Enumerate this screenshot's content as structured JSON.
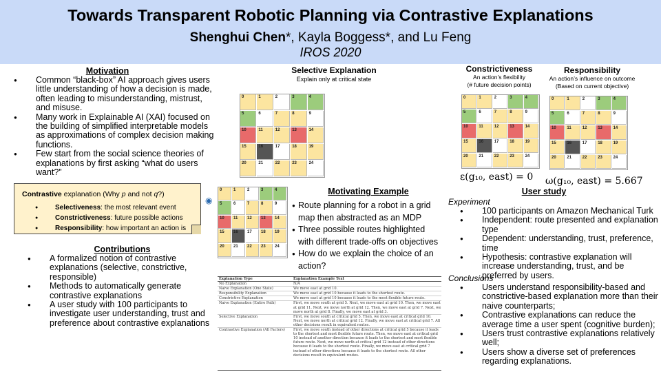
{
  "header": {
    "title": "Towards Transparent Robotic Planning via Contrastive Explanations",
    "authors_main": "Shenghui Chen",
    "authors_rest": "*, Kayla Boggess*, and Lu Feng",
    "venue": "IROS 2020"
  },
  "motivation": {
    "heading": "Motivation",
    "bullets": [
      "Common “black-box” AI approach gives users little understanding of how a decision is made, often leading to misunderstanding, mistrust, and misuse.",
      "Many work in Explainable AI (XAI) focused on the building of simplified interpretable models as approximations of complex decision making functions.",
      "Few start from the social science theories of explanations by first asking “what do users want?”"
    ]
  },
  "contrastive_box": {
    "title_bold": "Contrastive",
    "title_rest": " explanation (Why ",
    "p": "p",
    "and_not": " and not ",
    "q": "q",
    "end": "?)",
    "items": [
      {
        "term": "Selectiveness",
        "desc": ": the most relevant event"
      },
      {
        "term": "Constrictiveness",
        "desc": ": future possible actions"
      },
      {
        "term": "Responsibility",
        "desc": ": how important an action is"
      }
    ]
  },
  "contributions": {
    "heading": "Contributions",
    "bullets": [
      "A formalized notion of contrastive explanations (selective, constrictive, responsible)",
      "Methods to automatically generate contrastive explanations",
      "A user study with 100 participants to investigate user understanding, trust and preference about contrastive explanations"
    ]
  },
  "selective": {
    "heading": "Selective Explanation",
    "subtitle": "Explain only at critical state"
  },
  "constrictiveness": {
    "heading": "Constrictiveness",
    "subtitle1": "An action’s flexibility",
    "subtitle2": "(# future decision points)",
    "equation": "ε(g₁₀, east) = 0"
  },
  "responsibility": {
    "heading": "Responsibility",
    "subtitle1": "An action’s influence on outcome",
    "subtitle2": "(Based on current objective)",
    "equation": "ω(g₁₀, east) = 5.667"
  },
  "motivating_example": {
    "heading": "Motivating Example",
    "bullets": [
      "Route planning for a robot in a grid map then abstracted as an MDP",
      "Three possible routes highlighted with different trade-offs on objectives",
      "How do we explain the choice of an action?"
    ]
  },
  "user_study": {
    "heading": "User study",
    "experiment_label": "Experiment",
    "experiment": [
      "100 participants on Amazon Mechanical Turk",
      "Independent: route presented and explanation type",
      "Dependent: understanding, trust, preference, time",
      "Hypothesis: contrastive explanation will increase understanding, trust, and be preferred by users."
    ],
    "conclusions_label": "Conclusions",
    "conclusions": [
      "Users understand responsibility-based  and constrictive-based explanation more than their naive counterparts;",
      "Contrastive explanations can reduce the average time a user spent (cognitive burden);",
      "Users trust contrastive explanations relatively well;",
      "Users show a diverse set of preferences regarding explanations."
    ]
  },
  "explanation_table": {
    "headers": [
      "Explanation Type",
      "Explanation Example Text"
    ],
    "rows": [
      [
        "No Explanation",
        "N/A"
      ],
      [
        "Naive Explanation (One State)",
        "We move east at grid 10."
      ],
      [
        "Responsibility Explanation",
        "We move east at grid 10 because it leads to the shortest route."
      ],
      [
        "Constrictive Explanation",
        "We move east at grid 10 because it leads to the most flexible future route."
      ],
      [
        "Naive Explanation (Entire Path)",
        "First, we move south at grid 5. Next, we move east at grid 10. Then, we move east at grid 11. Next, we move north at grid 12. Then, we move east at grid 7. Next, we move north at grid 8. Finally, we move east at grid 3."
      ],
      [
        "Selective Explanation",
        "First, we move south at critical grid 5. Then, we move east at critical grid 10. Next, we move north at critical grid 12. Finally, we move east at critical grid 7. All other decisions result in equivalent routes."
      ],
      [
        "Contrastive Explanation (All Factors)",
        "First, we move south instead of other directions at critical grid 5 because it leads to the shortest and most flexible future route. Then, we move east at critical grid 10 instead of another direction because it leads to the shortest and most flexible future route. Next, we move north at critical grid 12 instead of other directions because it leads to the shortest route. Finally, we move east at critical grid 7 instead of other directions because it leads to the shortest route. All other decisions result in equivalent routes."
      ]
    ]
  },
  "grid_labels": [
    "0",
    "1",
    "2",
    "3",
    "4",
    "5",
    "6",
    "7",
    "8",
    "9",
    "10",
    "11",
    "12",
    "13",
    "14",
    "15",
    "16",
    "17",
    "18",
    "19",
    "20",
    "21",
    "22",
    "23",
    "24"
  ],
  "colors": {
    "header_bg": "#c9daf8",
    "box_bg": "#fff2cc",
    "grid_yellow": "#fce5a0",
    "grid_red": "#e86a6a",
    "grid_green": "#9ccc7c",
    "grid_dark": "#555555"
  }
}
